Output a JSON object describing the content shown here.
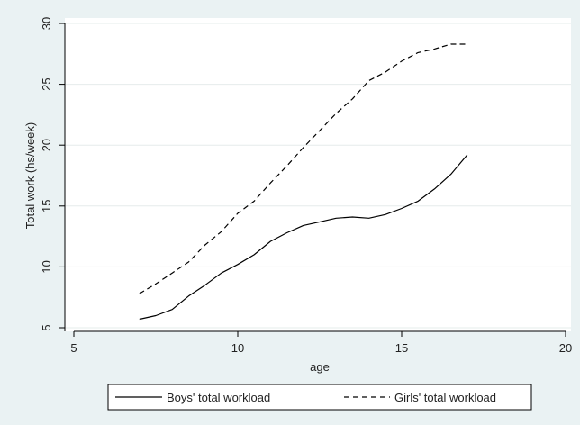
{
  "chart_data": {
    "type": "line",
    "xlabel": "age",
    "ylabel": "Total work (hs/week)",
    "xlim": [
      5,
      20
    ],
    "ylim": [
      5,
      30
    ],
    "xticks": [
      5,
      10,
      15,
      20
    ],
    "yticks": [
      5,
      10,
      15,
      20,
      25,
      30
    ],
    "grid": "horizontal",
    "legend_position": "bottom",
    "series": [
      {
        "name": "Boys' total workload",
        "style": "solid",
        "color": "#000000",
        "x": [
          7.0,
          7.5,
          8.0,
          8.5,
          9.0,
          9.5,
          10.0,
          10.5,
          11.0,
          11.5,
          12.0,
          12.5,
          13.0,
          13.5,
          14.0,
          14.5,
          15.0,
          15.5,
          16.0,
          16.5,
          17.0
        ],
        "y": [
          5.7,
          6.0,
          6.5,
          7.6,
          8.5,
          9.5,
          10.2,
          11.0,
          12.1,
          12.8,
          13.4,
          13.7,
          14.0,
          14.1,
          14.0,
          14.3,
          14.8,
          15.4,
          16.4,
          17.6,
          19.2
        ]
      },
      {
        "name": "Girls' total workload",
        "style": "dashed",
        "color": "#000000",
        "x": [
          7.0,
          7.5,
          8.0,
          8.5,
          9.0,
          9.5,
          10.0,
          10.5,
          11.0,
          11.5,
          12.0,
          12.5,
          13.0,
          13.5,
          14.0,
          14.5,
          15.0,
          15.5,
          16.0,
          16.5,
          17.0
        ],
        "y": [
          7.8,
          8.6,
          9.5,
          10.4,
          11.8,
          12.9,
          14.4,
          15.4,
          16.9,
          18.3,
          19.8,
          21.2,
          22.6,
          23.8,
          25.3,
          26.0,
          26.9,
          27.6,
          27.9,
          28.3,
          28.3
        ]
      }
    ]
  }
}
